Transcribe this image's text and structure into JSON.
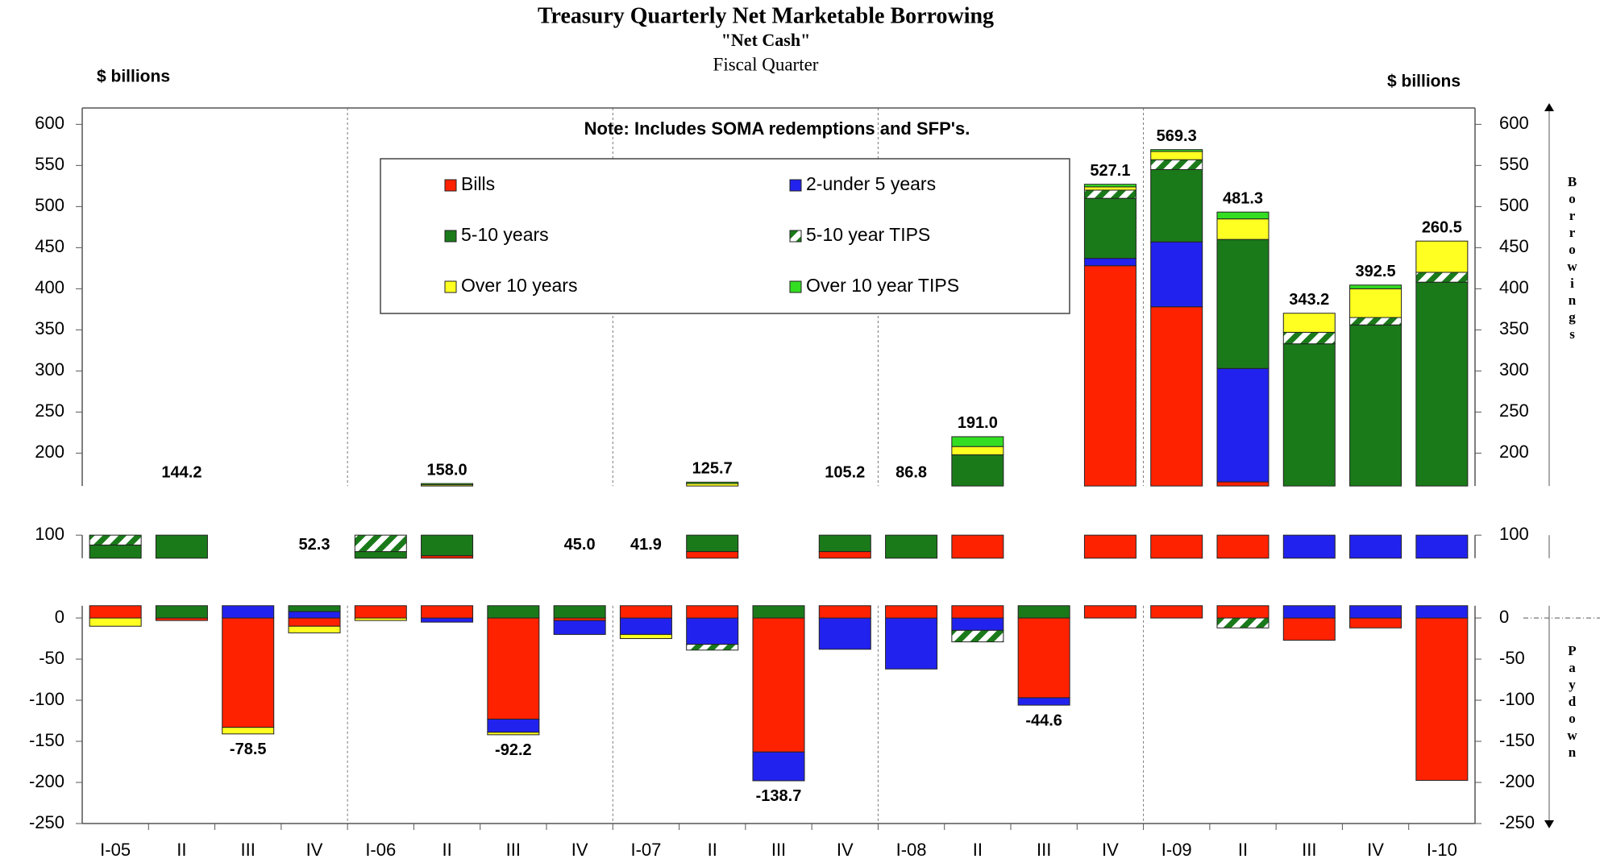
{
  "chart_data": {
    "type": "stacked_bar",
    "title": "Treasury Quarterly Net Marketable Borrowing",
    "subtitle": "\"Net Cash\"",
    "xlabel": "Fiscal Quarter",
    "ylabel": "$ billions",
    "y2label": "$ billions",
    "note": "Note: Includes SOMA redemptions and SFP's.",
    "up_label": "Borrowings",
    "down_label": "Paydown",
    "categories": [
      "I-05",
      "II",
      "III",
      "IV",
      "I-06",
      "II",
      "III",
      "IV",
      "I-07",
      "II",
      "III",
      "IV",
      "I-08",
      "II",
      "III",
      "IV",
      "I-09",
      "II",
      "III",
      "IV",
      "I-10"
    ],
    "series": [
      {
        "name": "Bills",
        "color": "#ff2200",
        "values": [
          40,
          -3,
          -133,
          -10,
          40,
          75,
          -123,
          -3,
          66.9,
          80,
          -163,
          80,
          45,
          120,
          -97,
          428,
          378,
          165,
          -27,
          -12,
          -197.5
        ]
      },
      {
        "name": "2-under 5 years",
        "color": "#2222ee",
        "values": [
          0,
          0,
          20,
          8,
          0,
          -5,
          -16,
          -17,
          -20,
          -32,
          -35,
          -38,
          -62,
          -15,
          -9,
          9,
          79,
          138,
          120,
          110,
          110
        ]
      },
      {
        "name": "5-10 years",
        "color": "#1a7a1a",
        "values": [
          48,
          147.2,
          42.5,
          62.3,
          40,
          84,
          49.8,
          65,
          0,
          80,
          59.3,
          63.2,
          103.8,
          78,
          61.4,
          73,
          88,
          157,
          213,
          246,
          298
        ]
      },
      {
        "name": "5-10 year TIPS",
        "color": "#1a7a1a",
        "pattern": "hatch",
        "values": [
          17,
          0,
          0,
          0,
          25,
          0,
          0,
          0,
          0,
          -7,
          0,
          0,
          0,
          -14,
          0,
          10,
          12,
          -12,
          14,
          9,
          12
        ]
      },
      {
        "name": "Over 10 years",
        "color": "#ffff22",
        "values": [
          -10,
          0,
          -8,
          -8,
          -3,
          2.5,
          -3,
          0,
          -5,
          3,
          0,
          0,
          0,
          10,
          0,
          4,
          10,
          25,
          23.2,
          35,
          38
        ]
      },
      {
        "name": "Over 10 year TIPS",
        "color": "#33dd22",
        "values": [
          0,
          0,
          0,
          0,
          0,
          1.5,
          0,
          0,
          0,
          1.7,
          0,
          0,
          0,
          12,
          0,
          3.1,
          2.3,
          8.3,
          0,
          4.5,
          0
        ]
      }
    ],
    "totals": {
      "values": [
        null,
        144.2,
        -78.5,
        52.3,
        null,
        158,
        -92.2,
        45,
        41.9,
        125.7,
        -138.7,
        105.2,
        86.8,
        191,
        -44.6,
        527.1,
        569.3,
        481.3,
        343.2,
        392.5,
        260.5
      ],
      "value_labels": [
        null,
        "144.2",
        "-78.5",
        "52.3",
        null,
        "158.0",
        "-92.2",
        "45.0",
        "41.9",
        "125.7",
        "-138.7",
        "105.2",
        "86.8",
        "191.0",
        "-44.6",
        "527.1",
        "569.3",
        "481.3",
        "343.2",
        "392.5",
        "260.5"
      ]
    },
    "ylim": [
      -250,
      620
    ],
    "y_breaks": [
      [
        15,
        72
      ],
      [
        100,
        160
      ]
    ],
    "yticks": [
      600,
      550,
      500,
      450,
      400,
      350,
      300,
      250,
      200,
      100,
      0,
      -50,
      -100,
      -150,
      -200,
      -250
    ]
  }
}
